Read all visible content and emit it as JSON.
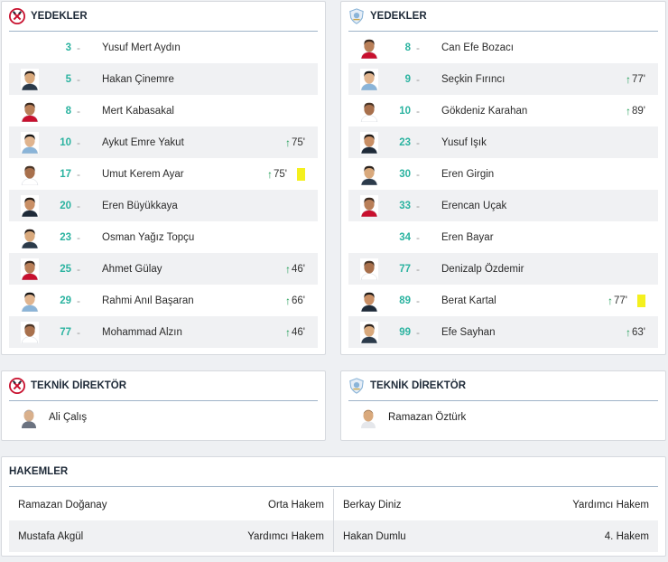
{
  "home": {
    "subs_title": "YEDEKLER",
    "coach_title": "TEKNİK DİREKTÖR",
    "coach_name": "Ali Çalış",
    "players": [
      {
        "number": "3",
        "name": "Yusuf Mert Aydın",
        "photo": false,
        "sub": "",
        "card": ""
      },
      {
        "number": "5",
        "name": "Hakan Çinemre",
        "photo": true,
        "sub": "",
        "card": ""
      },
      {
        "number": "8",
        "name": "Mert Kabasakal",
        "photo": true,
        "sub": "",
        "card": ""
      },
      {
        "number": "10",
        "name": "Aykut Emre Yakut",
        "photo": true,
        "sub": "75'",
        "card": ""
      },
      {
        "number": "17",
        "name": "Umut Kerem Ayar",
        "photo": true,
        "sub": "75'",
        "card": "yellow"
      },
      {
        "number": "20",
        "name": "Eren Büyükkaya",
        "photo": true,
        "sub": "",
        "card": ""
      },
      {
        "number": "23",
        "name": "Osman Yağız Topçu",
        "photo": true,
        "sub": "",
        "card": ""
      },
      {
        "number": "25",
        "name": "Ahmet Gülay",
        "photo": true,
        "sub": "46'",
        "card": ""
      },
      {
        "number": "29",
        "name": "Rahmi Anıl Başaran",
        "photo": true,
        "sub": "66'",
        "card": ""
      },
      {
        "number": "77",
        "name": "Mohammad Alzın",
        "photo": true,
        "sub": "46'",
        "card": ""
      }
    ]
  },
  "away": {
    "subs_title": "YEDEKLER",
    "coach_title": "TEKNİK DİREKTÖR",
    "coach_name": "Ramazan Öztürk",
    "players": [
      {
        "number": "8",
        "name": "Can Efe Bozacı",
        "photo": true,
        "sub": "",
        "card": ""
      },
      {
        "number": "9",
        "name": "Seçkin Fırıncı",
        "photo": true,
        "sub": "77'",
        "card": ""
      },
      {
        "number": "10",
        "name": "Gökdeniz Karahan",
        "photo": true,
        "sub": "89'",
        "card": ""
      },
      {
        "number": "23",
        "name": "Yusuf Işık",
        "photo": true,
        "sub": "",
        "card": ""
      },
      {
        "number": "30",
        "name": "Eren Girgin",
        "photo": true,
        "sub": "",
        "card": ""
      },
      {
        "number": "33",
        "name": "Erencan Uçak",
        "photo": true,
        "sub": "",
        "card": ""
      },
      {
        "number": "34",
        "name": "Eren Bayar",
        "photo": false,
        "sub": "",
        "card": ""
      },
      {
        "number": "77",
        "name": "Denizalp Özdemir",
        "photo": true,
        "sub": "",
        "card": ""
      },
      {
        "number": "89",
        "name": "Berat Kartal",
        "photo": true,
        "sub": "77'",
        "card": "yellow"
      },
      {
        "number": "99",
        "name": "Efe Sayhan",
        "photo": true,
        "sub": "63'",
        "card": ""
      }
    ]
  },
  "referees": {
    "title": "HAKEMLER",
    "rows": [
      [
        {
          "name": "Ramazan Doğanay",
          "role": "Orta Hakem"
        },
        {
          "name": "Berkay Diniz",
          "role": "Yardımcı Hakem"
        }
      ],
      [
        {
          "name": "Mustafa Akgül",
          "role": "Yardımcı Hakem"
        },
        {
          "name": "Hakan Dumlu",
          "role": "4. Hakem"
        }
      ]
    ]
  },
  "colors": {
    "number": "#2bb3a0",
    "sub_arrow": "#1f9d55",
    "yellow_card": "#f4f01e",
    "head_line": "#9fb3c8",
    "home_logo": "#c8102e",
    "away_logo": "#8ab4d8"
  },
  "icons": {
    "home_logo": "club-crest-red-hammers-icon",
    "away_logo": "club-crest-blue-shield-icon",
    "sub_in": "arrow-up-icon",
    "card": "yellow-card-icon"
  }
}
